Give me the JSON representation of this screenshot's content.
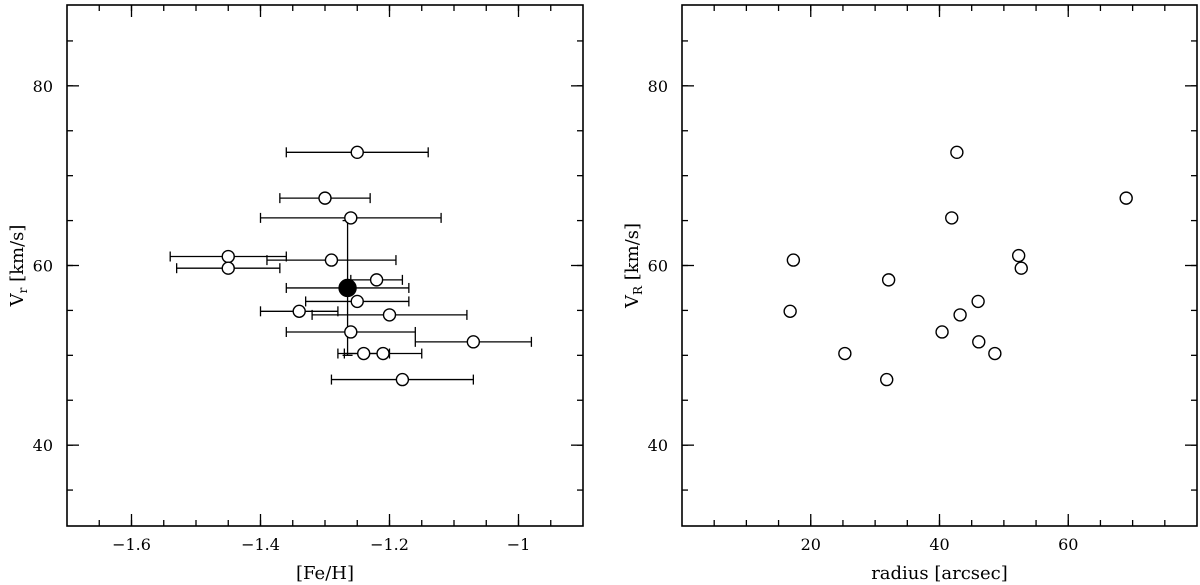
{
  "chart_data": [
    {
      "type": "scatter",
      "xlabel": "[Fe/H]",
      "ylabel": "V",
      "ylabel_sub": "r",
      "ylabel_unit": " [km/s]",
      "xlim": [
        -1.7,
        -0.9
      ],
      "ylim": [
        31,
        89
      ],
      "x_major_ticks": [
        -1.6,
        -1.4,
        -1.2,
        -1.0
      ],
      "x_tick_labels": [
        "−1.6",
        "−1.4",
        "−1.2",
        "−1"
      ],
      "x_minor_step": 0.05,
      "y_major_ticks": [
        40,
        60,
        80
      ],
      "y_tick_labels": [
        "40",
        "60",
        "80"
      ],
      "y_minor_step": 5,
      "points": [
        {
          "x": -1.25,
          "y": 72.6,
          "xerr": 0.11
        },
        {
          "x": -1.3,
          "y": 67.5,
          "xerr": 0.07
        },
        {
          "x": -1.26,
          "y": 65.3,
          "xerr": 0.14
        },
        {
          "x": -1.45,
          "y": 61.0,
          "xerr": 0.09
        },
        {
          "x": -1.29,
          "y": 60.6,
          "xerr": 0.1
        },
        {
          "x": -1.45,
          "y": 59.7,
          "xerr": 0.08
        },
        {
          "x": -1.22,
          "y": 58.4,
          "xerr": 0.04
        },
        {
          "x": -1.25,
          "y": 56.0,
          "xerr": 0.08
        },
        {
          "x": -1.34,
          "y": 54.9,
          "xerr": 0.06
        },
        {
          "x": -1.2,
          "y": 54.5,
          "xerr": 0.12
        },
        {
          "x": -1.26,
          "y": 52.6,
          "xerr": 0.1
        },
        {
          "x": -1.07,
          "y": 51.5,
          "xerr": 0.09
        },
        {
          "x": -1.24,
          "y": 50.2,
          "xerr": 0.04
        },
        {
          "x": -1.21,
          "y": 50.2,
          "xerr": 0.06
        },
        {
          "x": -1.18,
          "y": 47.3,
          "xerr": 0.11
        }
      ],
      "mean_point": {
        "x": -1.265,
        "y": 57.5,
        "xerr": 0.095,
        "yerr": 7.5
      }
    },
    {
      "type": "scatter",
      "xlabel": "radius [arcsec]",
      "ylabel": "V",
      "ylabel_sub": "R",
      "ylabel_unit": " [km/s]",
      "xlim": [
        0,
        80
      ],
      "ylim": [
        31,
        89
      ],
      "x_major_ticks": [
        20,
        40,
        60
      ],
      "x_tick_labels": [
        "20",
        "40",
        "60"
      ],
      "x_minor_step": 5,
      "y_major_ticks": [
        40,
        60,
        80
      ],
      "y_tick_labels": [
        "40",
        "60",
        "80"
      ],
      "y_minor_step": 5,
      "points": [
        {
          "x": 42.7,
          "y": 72.6
        },
        {
          "x": 69.0,
          "y": 67.5
        },
        {
          "x": 41.9,
          "y": 65.3
        },
        {
          "x": 52.3,
          "y": 61.1
        },
        {
          "x": 17.3,
          "y": 60.6
        },
        {
          "x": 52.7,
          "y": 59.7
        },
        {
          "x": 32.1,
          "y": 58.4
        },
        {
          "x": 46.0,
          "y": 56.0
        },
        {
          "x": 16.8,
          "y": 54.9
        },
        {
          "x": 43.2,
          "y": 54.5
        },
        {
          "x": 40.4,
          "y": 52.6
        },
        {
          "x": 46.1,
          "y": 51.5
        },
        {
          "x": 25.3,
          "y": 50.2
        },
        {
          "x": 48.6,
          "y": 50.2
        },
        {
          "x": 31.8,
          "y": 47.3
        }
      ]
    }
  ]
}
